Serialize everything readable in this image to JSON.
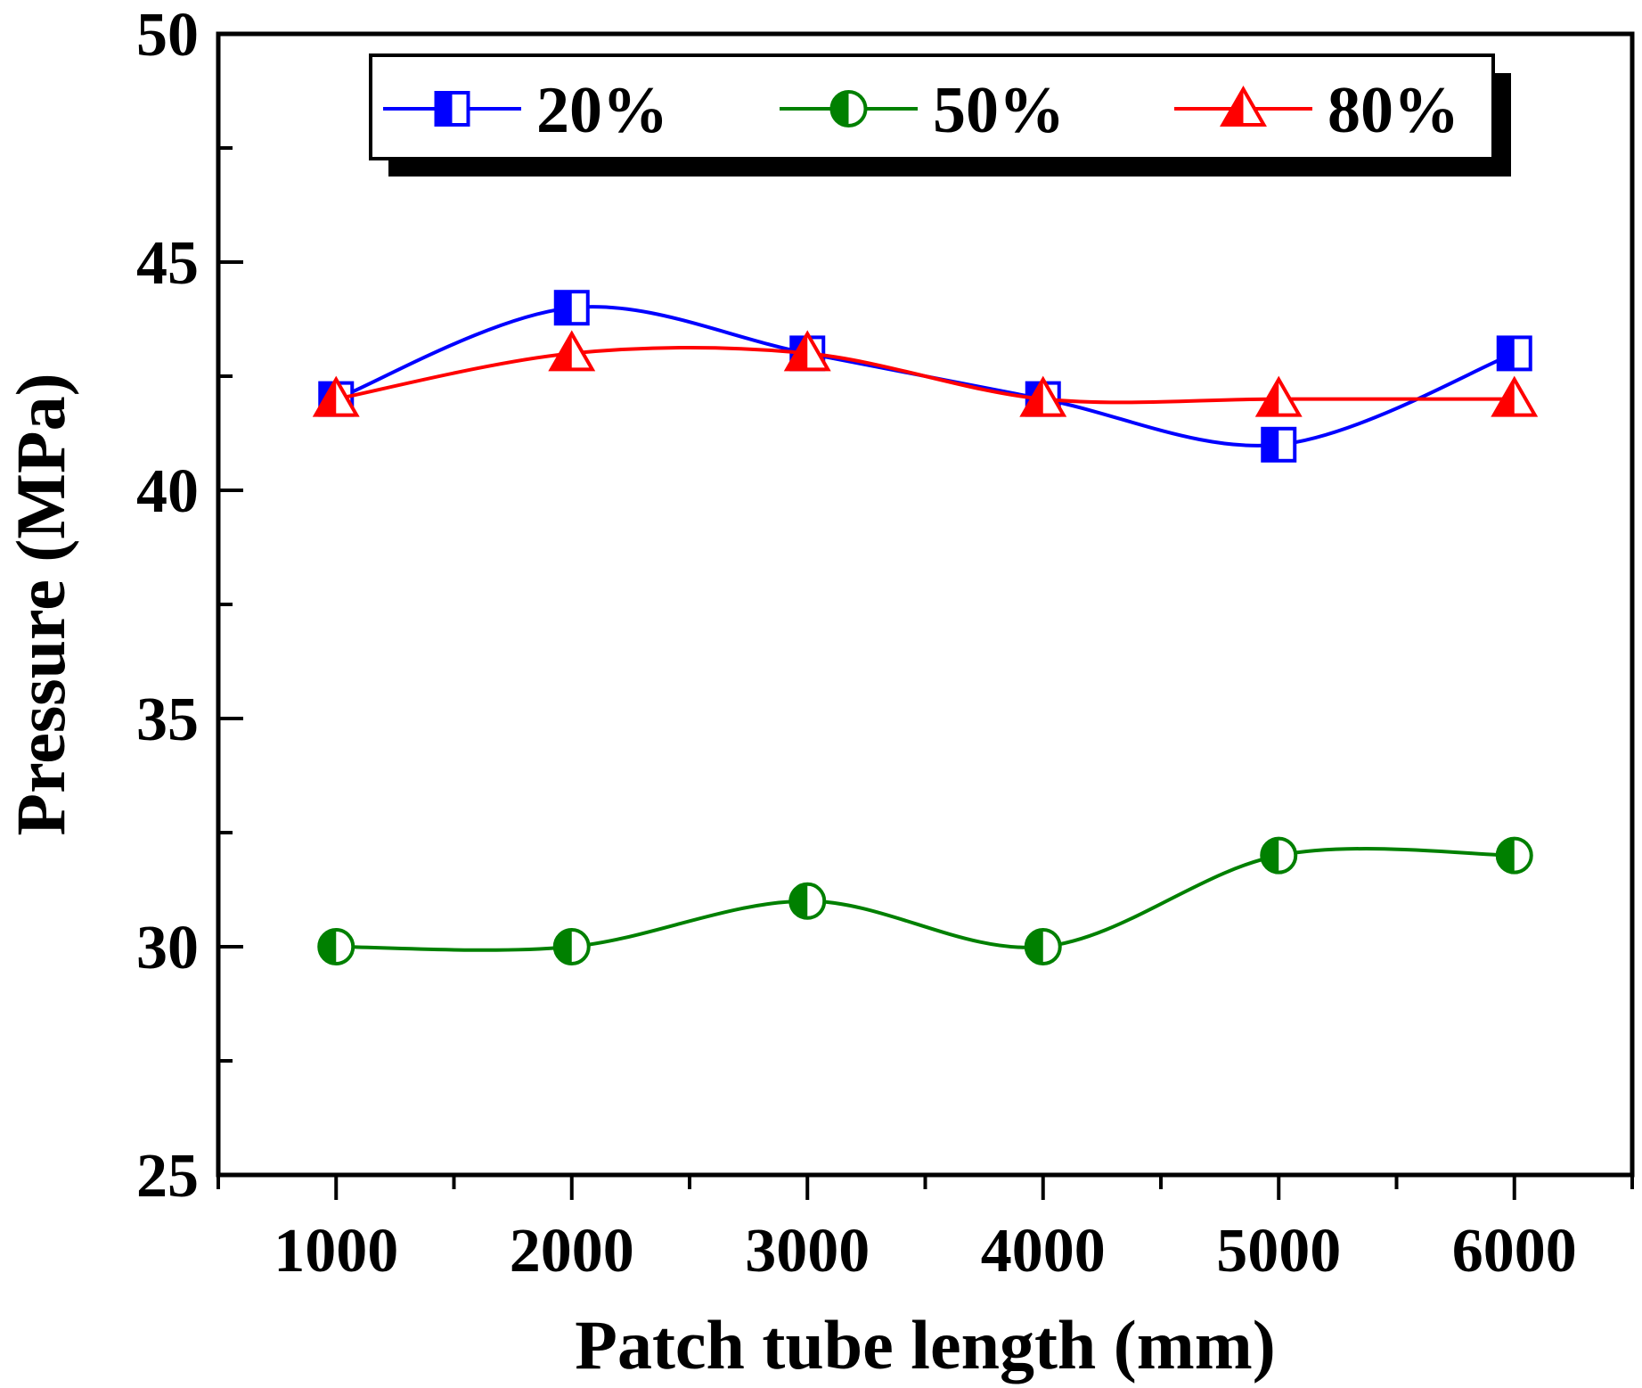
{
  "chart_data": {
    "type": "line",
    "title": "",
    "xlabel": "Patch tube length (mm)",
    "ylabel": "Pressure (MPa)",
    "x": [
      1000,
      2000,
      3000,
      4000,
      5000,
      6000
    ],
    "x_tick_labels": [
      "1000",
      "2000",
      "3000",
      "4000",
      "5000",
      "6000"
    ],
    "xlim": [
      500,
      6500
    ],
    "ylim": [
      25,
      50
    ],
    "y_ticks": [
      25,
      30,
      35,
      40,
      45,
      50
    ],
    "y_tick_labels": [
      "25",
      "30",
      "35",
      "40",
      "45",
      "50"
    ],
    "grid": false,
    "legend_position": "top",
    "series": [
      {
        "name": "20%",
        "color": "#0000ff",
        "marker": "square-half",
        "values": [
          42,
          44,
          43,
          42,
          41,
          43
        ]
      },
      {
        "name": "50%",
        "color": "#008000",
        "marker": "circle-half",
        "values": [
          30,
          30,
          31,
          30,
          32,
          32
        ]
      },
      {
        "name": "80%",
        "color": "#ff0000",
        "marker": "triangle-half",
        "values": [
          42,
          43,
          43,
          42,
          42,
          42
        ]
      }
    ]
  }
}
